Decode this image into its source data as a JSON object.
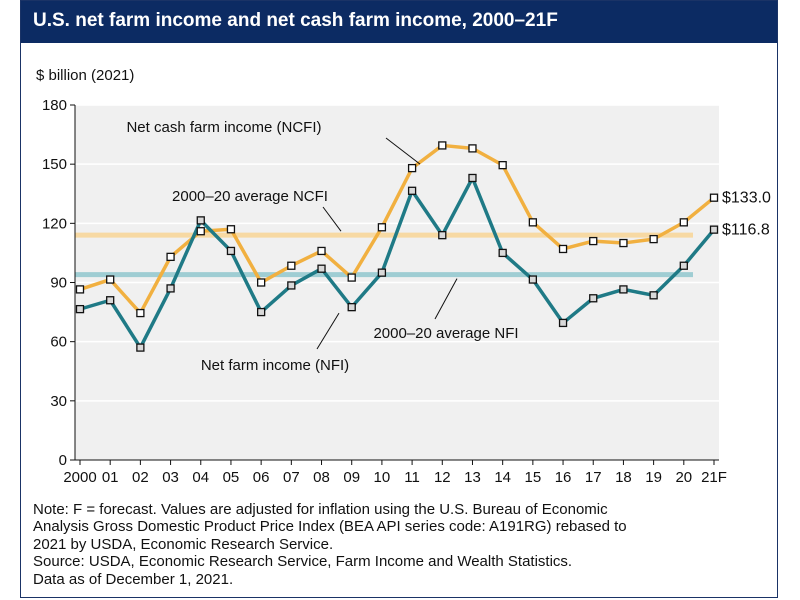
{
  "header": {
    "title": "U.S. net farm income and net cash farm income, 2000–21F"
  },
  "chart_data": {
    "type": "line",
    "title": "U.S. net farm income and net cash farm income, 2000–21F",
    "ylabel": "$ billion (2021)",
    "xlabel": "",
    "ylim": [
      0,
      180
    ],
    "yticks": [
      "0",
      "30",
      "60",
      "90",
      "120",
      "150",
      "180"
    ],
    "categories": [
      "2000",
      "01",
      "02",
      "03",
      "04",
      "05",
      "06",
      "07",
      "08",
      "09",
      "10",
      "11",
      "12",
      "13",
      "14",
      "15",
      "16",
      "17",
      "18",
      "19",
      "20",
      "21F"
    ],
    "grid": true,
    "series": [
      {
        "name": "Net cash farm income (NCFI)",
        "color": "#f1b040",
        "values": [
          86.5,
          91.5,
          74.5,
          103,
          116,
          117,
          90,
          98.5,
          106,
          92.5,
          118,
          148,
          159.5,
          158,
          149.5,
          120.5,
          107,
          111,
          110,
          112,
          120.5,
          133.0
        ],
        "end_label": "$133.0"
      },
      {
        "name": "Net farm income (NFI)",
        "color": "#1f7a86",
        "values": [
          76.5,
          81,
          57,
          87,
          121.5,
          106,
          75,
          88.5,
          97,
          77.5,
          95,
          136.5,
          114,
          143,
          105,
          91.5,
          69.5,
          82,
          86.5,
          83.5,
          98.5,
          116.8
        ],
        "end_label": "$116.8"
      }
    ],
    "reference_lines": [
      {
        "label": "2000–20 average NCFI",
        "value": 114,
        "color": "#f7d9a3"
      },
      {
        "label": "2000–20 average NFI",
        "value": 94,
        "color": "#9fcdd3"
      }
    ]
  },
  "note": {
    "lines": [
      "Note: F = forecast. Values are adjusted for inflation using the U.S. Bureau of Economic",
      "Analysis Gross Domestic Product Price Index (BEA API series code: A191RG) rebased to",
      "2021 by USDA, Economic Research Service.",
      "Source: USDA, Economic Research Service, Farm Income and Wealth Statistics.",
      "Data as of December 1, 2021."
    ]
  }
}
